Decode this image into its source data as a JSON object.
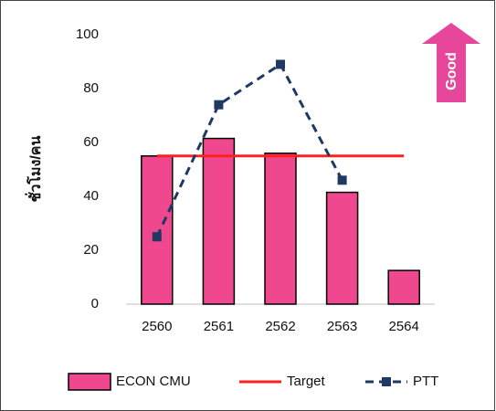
{
  "chart_data": {
    "type": "bar",
    "y_label": "ชั่วโมง/คน",
    "annotation": "Good",
    "categories": [
      "2560",
      "2561",
      "2562",
      "2563",
      "2564"
    ],
    "series": [
      {
        "name": "ECON CMU",
        "type": "bar",
        "color": "#f0488f",
        "values": [
          55,
          61.5,
          56,
          41.5,
          12.5
        ]
      },
      {
        "name": "Target",
        "type": "line",
        "color": "#ff2020",
        "values": [
          55,
          55,
          55,
          55,
          55
        ]
      },
      {
        "name": "PTT",
        "type": "dashed-line",
        "color": "#1f3864",
        "values": [
          25,
          74,
          89,
          46,
          null
        ]
      }
    ],
    "ylim": [
      0,
      100
    ],
    "yticks": [
      0,
      20,
      40,
      60,
      80,
      100
    ],
    "grid": false,
    "legend": "bottom"
  }
}
